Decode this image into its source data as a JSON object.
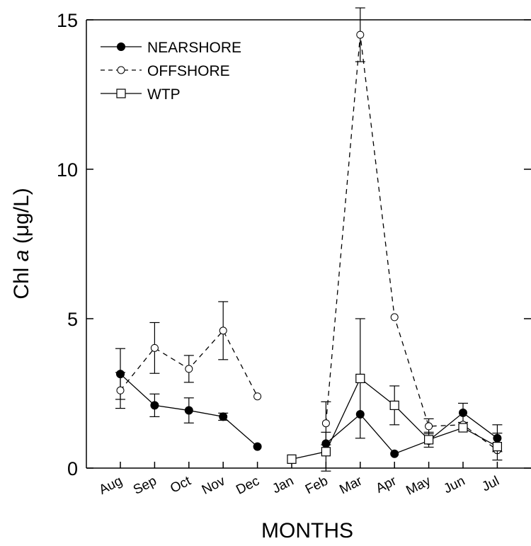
{
  "chart_data": {
    "type": "line",
    "xlabel": "MONTHS",
    "ylabel_parts": [
      "Chl ",
      "a",
      " (μg/L)"
    ],
    "ylim": [
      0,
      15
    ],
    "yticks": [
      0,
      5,
      10,
      15
    ],
    "categories": [
      "Aug",
      "Sep",
      "Oct",
      "Nov",
      "Dec",
      "Jan",
      "Feb",
      "Mar",
      "Apr",
      "May",
      "Jun",
      "Jul"
    ],
    "grid": false,
    "legend_position": "top-left",
    "series": [
      {
        "name": "NEARSHORE",
        "marker": "filled-circle",
        "line": "solid",
        "segments": [
          [
            0,
            4
          ],
          [
            6,
            11
          ]
        ],
        "values": [
          3.15,
          2.1,
          1.93,
          1.72,
          0.72,
          null,
          0.82,
          1.8,
          0.48,
          0.92,
          1.85,
          1.0
        ],
        "errors": [
          0.85,
          0.38,
          0.42,
          0.12,
          null,
          null,
          null,
          null,
          null,
          null,
          0.32,
          0.45
        ]
      },
      {
        "name": "OFFSHORE",
        "marker": "open-circle",
        "line": "dashed",
        "segments": [
          [
            0,
            4
          ],
          [
            6,
            11
          ]
        ],
        "values": [
          2.6,
          4.02,
          3.32,
          4.6,
          2.4,
          null,
          1.5,
          14.5,
          5.05,
          1.4,
          1.45,
          0.6
        ],
        "errors": [
          0.6,
          0.85,
          0.45,
          0.97,
          null,
          null,
          0.72,
          0.9,
          null,
          0.25,
          null,
          null
        ]
      },
      {
        "name": "WTP",
        "marker": "open-square",
        "line": "solid",
        "segments": [
          [
            5,
            11
          ]
        ],
        "values": [
          null,
          null,
          null,
          null,
          null,
          0.3,
          0.55,
          3.0,
          2.1,
          0.95,
          1.35,
          0.72
        ],
        "errors": [
          null,
          null,
          null,
          null,
          null,
          null,
          0.65,
          2.0,
          0.65,
          0.25,
          null,
          0.45
        ]
      }
    ]
  }
}
